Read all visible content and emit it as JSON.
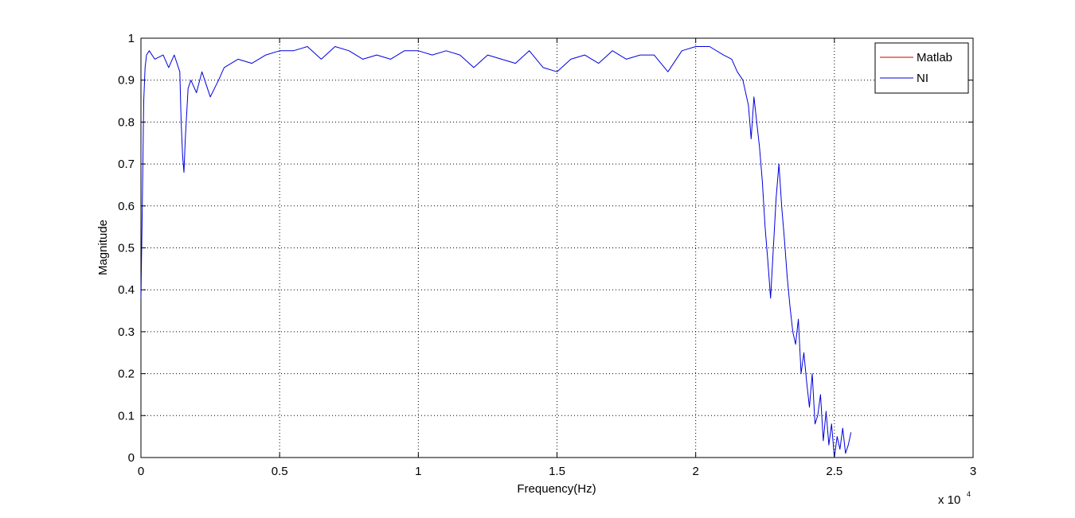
{
  "chart_data": {
    "type": "line",
    "title": "",
    "xlabel": "Frequency(Hz)",
    "ylabel": "Magnitude",
    "x_multiplier_label": "x 10",
    "x_multiplier_exponent": "4",
    "xlim": [
      0,
      3
    ],
    "ylim": [
      0,
      1
    ],
    "x_ticks": [
      0,
      0.5,
      1,
      1.5,
      2,
      2.5,
      3
    ],
    "x_tick_labels": [
      "0",
      "0.5",
      "1",
      "1.5",
      "2",
      "2.5",
      "3"
    ],
    "y_ticks": [
      0,
      0.1,
      0.2,
      0.3,
      0.4,
      0.5,
      0.6,
      0.7,
      0.8,
      0.9,
      1
    ],
    "y_tick_labels": [
      "0",
      "0.1",
      "0.2",
      "0.3",
      "0.4",
      "0.5",
      "0.6",
      "0.7",
      "0.8",
      "0.9",
      "1"
    ],
    "grid": true,
    "legend_position": "top-right",
    "series": [
      {
        "name": "Matlab",
        "color": "#cc0000",
        "x": [],
        "y": []
      },
      {
        "name": "NI",
        "color": "#0000dd",
        "x": [
          0.0,
          0.005,
          0.01,
          0.015,
          0.02,
          0.03,
          0.05,
          0.08,
          0.1,
          0.12,
          0.14,
          0.145,
          0.15,
          0.155,
          0.16,
          0.17,
          0.18,
          0.2,
          0.22,
          0.25,
          0.28,
          0.3,
          0.35,
          0.4,
          0.45,
          0.5,
          0.55,
          0.6,
          0.65,
          0.7,
          0.75,
          0.8,
          0.85,
          0.9,
          0.95,
          1.0,
          1.05,
          1.1,
          1.15,
          1.2,
          1.25,
          1.3,
          1.35,
          1.4,
          1.45,
          1.5,
          1.55,
          1.6,
          1.65,
          1.7,
          1.75,
          1.8,
          1.85,
          1.9,
          1.95,
          2.0,
          2.05,
          2.1,
          2.13,
          2.15,
          2.17,
          2.19,
          2.2,
          2.21,
          2.22,
          2.23,
          2.24,
          2.25,
          2.26,
          2.27,
          2.28,
          2.29,
          2.3,
          2.31,
          2.32,
          2.33,
          2.34,
          2.35,
          2.36,
          2.37,
          2.38,
          2.39,
          2.4,
          2.41,
          2.42,
          2.43,
          2.44,
          2.45,
          2.46,
          2.47,
          2.48,
          2.49,
          2.5,
          2.51,
          2.52,
          2.53,
          2.54,
          2.55,
          2.56
        ],
        "y": [
          0.38,
          0.6,
          0.85,
          0.93,
          0.96,
          0.97,
          0.95,
          0.96,
          0.93,
          0.96,
          0.92,
          0.8,
          0.72,
          0.68,
          0.76,
          0.88,
          0.9,
          0.87,
          0.92,
          0.86,
          0.9,
          0.93,
          0.95,
          0.94,
          0.96,
          0.97,
          0.97,
          0.98,
          0.95,
          0.98,
          0.97,
          0.95,
          0.96,
          0.95,
          0.97,
          0.97,
          0.96,
          0.97,
          0.96,
          0.93,
          0.96,
          0.95,
          0.94,
          0.97,
          0.93,
          0.92,
          0.95,
          0.96,
          0.94,
          0.97,
          0.95,
          0.96,
          0.96,
          0.92,
          0.97,
          0.98,
          0.98,
          0.96,
          0.95,
          0.92,
          0.9,
          0.84,
          0.76,
          0.86,
          0.8,
          0.74,
          0.66,
          0.55,
          0.47,
          0.38,
          0.5,
          0.62,
          0.7,
          0.6,
          0.52,
          0.43,
          0.36,
          0.3,
          0.27,
          0.33,
          0.2,
          0.25,
          0.18,
          0.12,
          0.2,
          0.08,
          0.1,
          0.15,
          0.04,
          0.11,
          0.03,
          0.08,
          0.0,
          0.05,
          0.02,
          0.07,
          0.01,
          0.03,
          0.06
        ]
      }
    ]
  }
}
